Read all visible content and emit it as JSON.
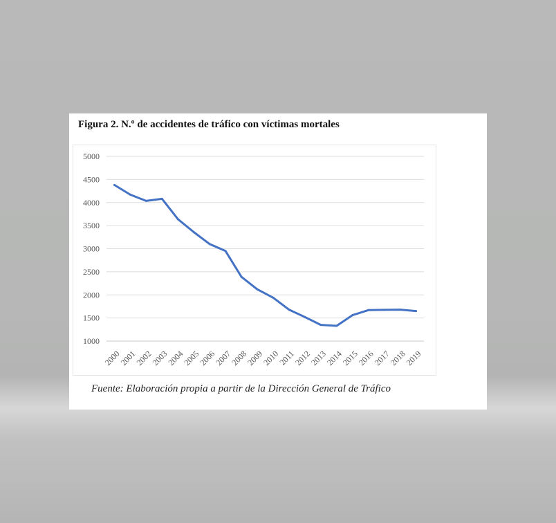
{
  "figure": {
    "title": "Figura 2. N.º de accidentes de tráfico con víctimas mortales",
    "source": "Fuente: Elaboración propia a partir de la Dirección General de Tráfico"
  },
  "chart_data": {
    "type": "line",
    "title": "",
    "xlabel": "",
    "ylabel": "",
    "x": [
      "2000",
      "2001",
      "2002",
      "2003",
      "2004",
      "2005",
      "2006",
      "2007",
      "2008",
      "2009",
      "2010",
      "2011",
      "2012",
      "2013",
      "2014",
      "2015",
      "2016",
      "2017",
      "2018",
      "2019"
    ],
    "series": [
      {
        "values": [
          4380,
          4170,
          4035,
          4080,
          3640,
          3360,
          3100,
          2950,
          2390,
          2120,
          1940,
          1680,
          1520,
          1350,
          1330,
          1560,
          1670,
          1675,
          1680,
          1650
        ],
        "color": "#4472c4"
      }
    ],
    "ylim": [
      1000,
      5000
    ],
    "yticks": [
      1000,
      1500,
      2000,
      2500,
      3000,
      3500,
      4000,
      4500,
      5000
    ],
    "grid": "horizontal",
    "legend": "none"
  }
}
